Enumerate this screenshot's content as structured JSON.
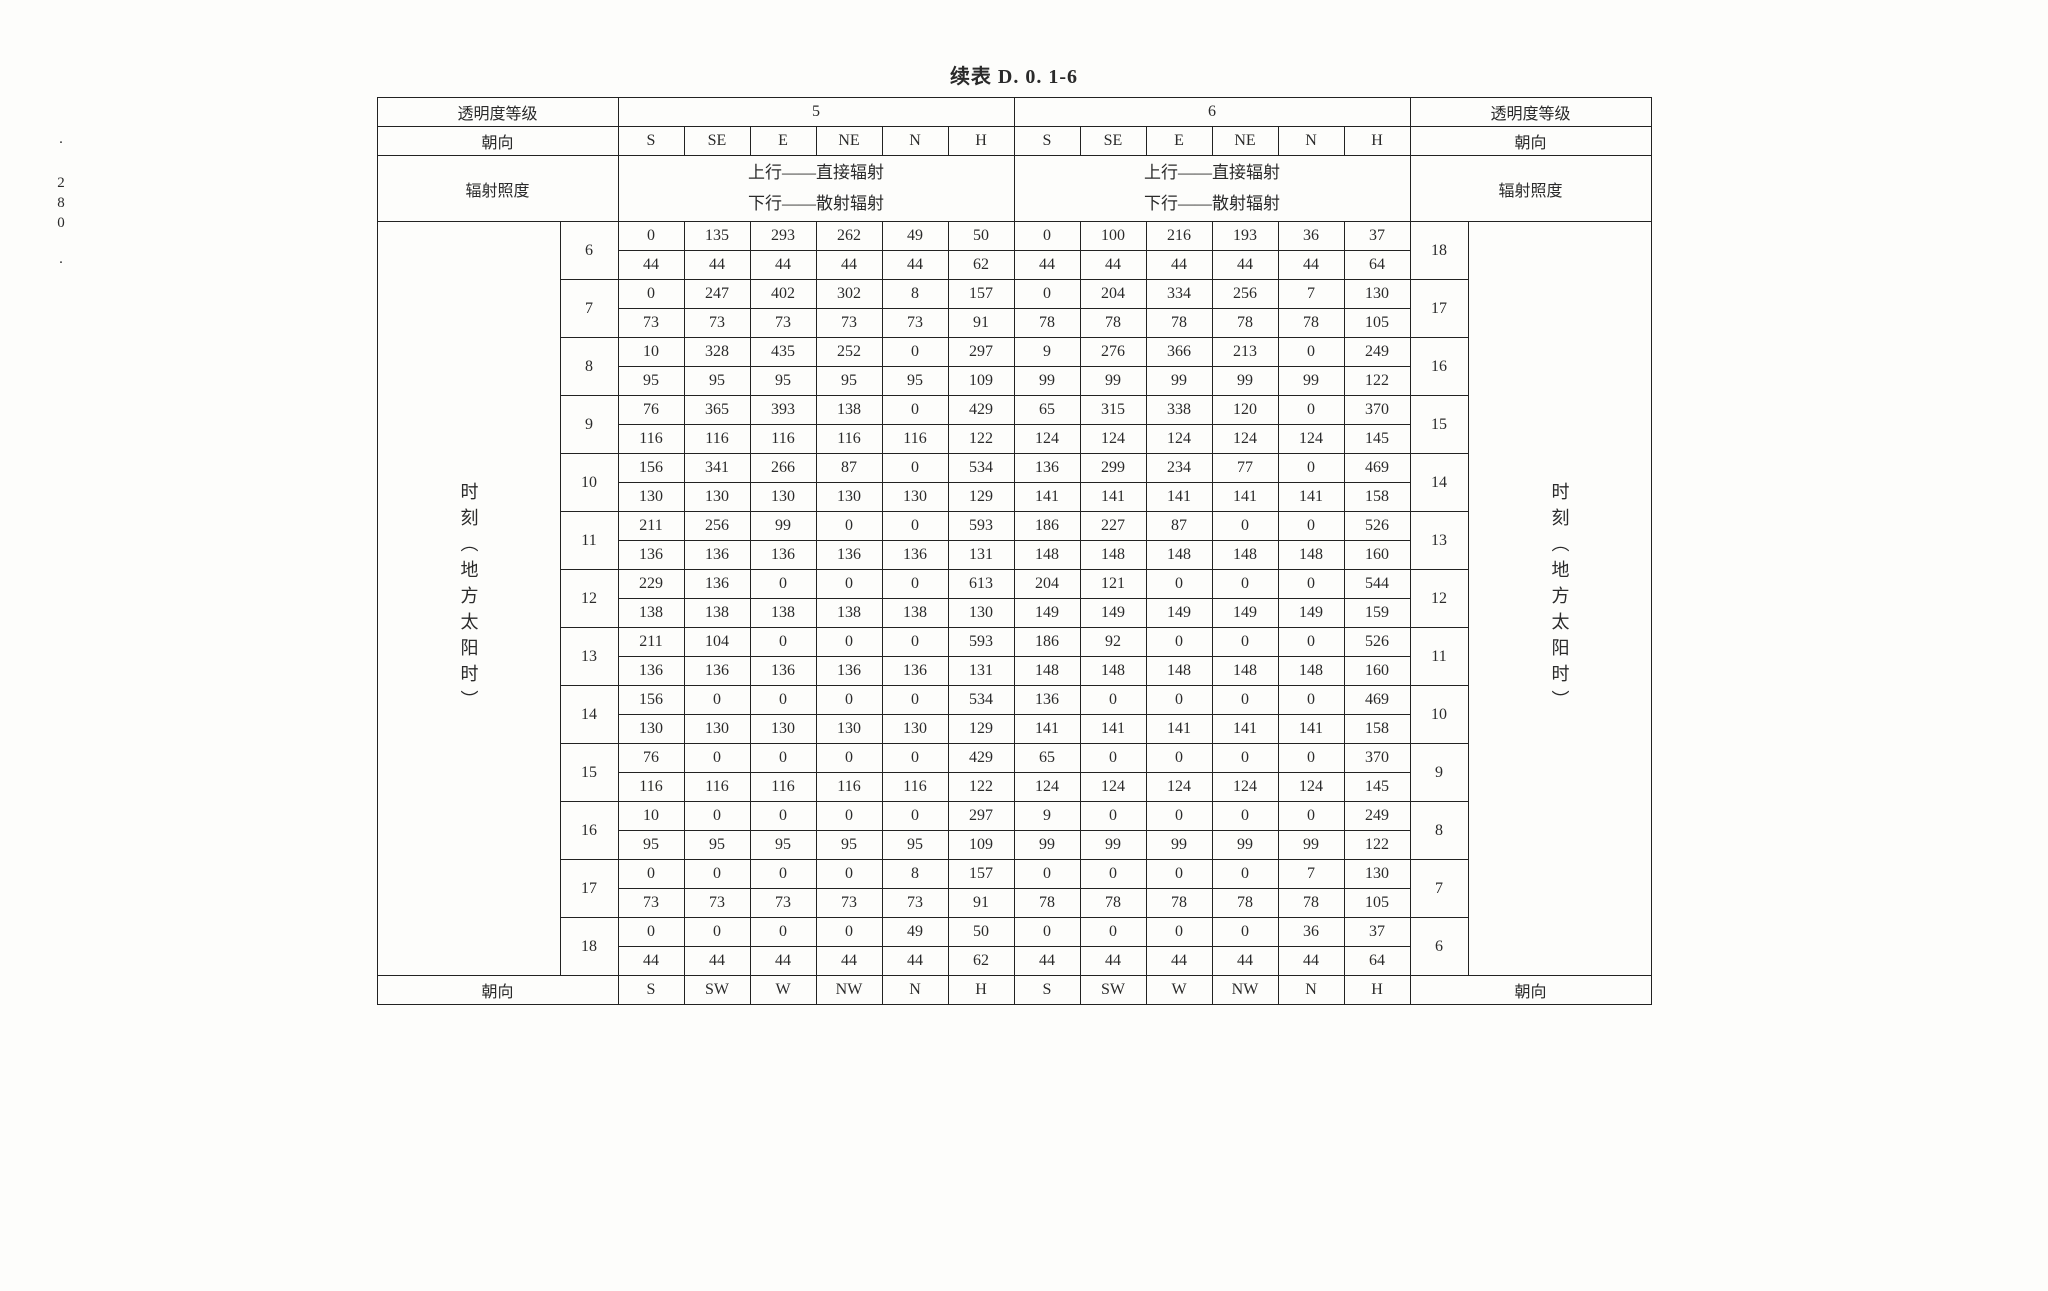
{
  "pageNumber": "· 280 ·",
  "title": "续表 D. 0. 1-6",
  "labels": {
    "transparency": "透明度等级",
    "orientation": "朝向",
    "irradiance": "辐射照度",
    "radiationNote_line1": "上行——直接辐射",
    "radiationNote_line2": "下行——散射辐射",
    "timeVertical": "时刻︵地方太阳时︶"
  },
  "groups": [
    "5",
    "6"
  ],
  "topOrientations": [
    "S",
    "SE",
    "E",
    "NE",
    "N",
    "H"
  ],
  "bottomOrientations": [
    "S",
    "SW",
    "W",
    "NW",
    "N",
    "H"
  ],
  "hoursLeft": [
    "6",
    "7",
    "8",
    "9",
    "10",
    "11",
    "12",
    "13",
    "14",
    "15",
    "16",
    "17",
    "18"
  ],
  "hoursRight": [
    "18",
    "17",
    "16",
    "15",
    "14",
    "13",
    "12",
    "11",
    "10",
    "9",
    "8",
    "7",
    "6"
  ],
  "rows": [
    {
      "g5": {
        "up": [
          0,
          135,
          293,
          262,
          49,
          50
        ],
        "dn": [
          44,
          44,
          44,
          44,
          44,
          62
        ]
      },
      "g6": {
        "up": [
          0,
          100,
          216,
          193,
          36,
          37
        ],
        "dn": [
          44,
          44,
          44,
          44,
          44,
          64
        ]
      }
    },
    {
      "g5": {
        "up": [
          0,
          247,
          402,
          302,
          8,
          157
        ],
        "dn": [
          73,
          73,
          73,
          73,
          73,
          91
        ]
      },
      "g6": {
        "up": [
          0,
          204,
          334,
          256,
          7,
          130
        ],
        "dn": [
          78,
          78,
          78,
          78,
          78,
          105
        ]
      }
    },
    {
      "g5": {
        "up": [
          10,
          328,
          435,
          252,
          0,
          297
        ],
        "dn": [
          95,
          95,
          95,
          95,
          95,
          109
        ]
      },
      "g6": {
        "up": [
          9,
          276,
          366,
          213,
          0,
          249
        ],
        "dn": [
          99,
          99,
          99,
          99,
          99,
          122
        ]
      }
    },
    {
      "g5": {
        "up": [
          76,
          365,
          393,
          138,
          0,
          429
        ],
        "dn": [
          116,
          116,
          116,
          116,
          116,
          122
        ]
      },
      "g6": {
        "up": [
          65,
          315,
          338,
          120,
          0,
          370
        ],
        "dn": [
          124,
          124,
          124,
          124,
          124,
          145
        ]
      }
    },
    {
      "g5": {
        "up": [
          156,
          341,
          266,
          87,
          0,
          534
        ],
        "dn": [
          130,
          130,
          130,
          130,
          130,
          129
        ]
      },
      "g6": {
        "up": [
          136,
          299,
          234,
          77,
          0,
          469
        ],
        "dn": [
          141,
          141,
          141,
          141,
          141,
          158
        ]
      }
    },
    {
      "g5": {
        "up": [
          211,
          256,
          99,
          0,
          0,
          593
        ],
        "dn": [
          136,
          136,
          136,
          136,
          136,
          131
        ]
      },
      "g6": {
        "up": [
          186,
          227,
          87,
          0,
          0,
          526
        ],
        "dn": [
          148,
          148,
          148,
          148,
          148,
          160
        ]
      }
    },
    {
      "g5": {
        "up": [
          229,
          136,
          0,
          0,
          0,
          613
        ],
        "dn": [
          138,
          138,
          138,
          138,
          138,
          130
        ]
      },
      "g6": {
        "up": [
          204,
          121,
          0,
          0,
          0,
          544
        ],
        "dn": [
          149,
          149,
          149,
          149,
          149,
          159
        ]
      }
    },
    {
      "g5": {
        "up": [
          211,
          104,
          0,
          0,
          0,
          593
        ],
        "dn": [
          136,
          136,
          136,
          136,
          136,
          131
        ]
      },
      "g6": {
        "up": [
          186,
          92,
          0,
          0,
          0,
          526
        ],
        "dn": [
          148,
          148,
          148,
          148,
          148,
          160
        ]
      }
    },
    {
      "g5": {
        "up": [
          156,
          0,
          0,
          0,
          0,
          534
        ],
        "dn": [
          130,
          130,
          130,
          130,
          130,
          129
        ]
      },
      "g6": {
        "up": [
          136,
          0,
          0,
          0,
          0,
          469
        ],
        "dn": [
          141,
          141,
          141,
          141,
          141,
          158
        ]
      }
    },
    {
      "g5": {
        "up": [
          76,
          0,
          0,
          0,
          0,
          429
        ],
        "dn": [
          116,
          116,
          116,
          116,
          116,
          122
        ]
      },
      "g6": {
        "up": [
          65,
          0,
          0,
          0,
          0,
          370
        ],
        "dn": [
          124,
          124,
          124,
          124,
          124,
          145
        ]
      }
    },
    {
      "g5": {
        "up": [
          10,
          0,
          0,
          0,
          0,
          297
        ],
        "dn": [
          95,
          95,
          95,
          95,
          95,
          109
        ]
      },
      "g6": {
        "up": [
          9,
          0,
          0,
          0,
          0,
          249
        ],
        "dn": [
          99,
          99,
          99,
          99,
          99,
          122
        ]
      }
    },
    {
      "g5": {
        "up": [
          0,
          0,
          0,
          0,
          8,
          157
        ],
        "dn": [
          73,
          73,
          73,
          73,
          73,
          91
        ]
      },
      "g6": {
        "up": [
          0,
          0,
          0,
          0,
          7,
          130
        ],
        "dn": [
          78,
          78,
          78,
          78,
          78,
          105
        ]
      }
    },
    {
      "g5": {
        "up": [
          0,
          0,
          0,
          0,
          49,
          50
        ],
        "dn": [
          44,
          44,
          44,
          44,
          44,
          62
        ]
      },
      "g6": {
        "up": [
          0,
          0,
          0,
          0,
          36,
          37
        ],
        "dn": [
          44,
          44,
          44,
          44,
          44,
          64
        ]
      }
    }
  ],
  "style": {
    "fontSize": 16,
    "headerFontSize": 20,
    "borderColor": "#222222",
    "background": "#fdfdfb",
    "textColor": "#2a2a2a"
  }
}
